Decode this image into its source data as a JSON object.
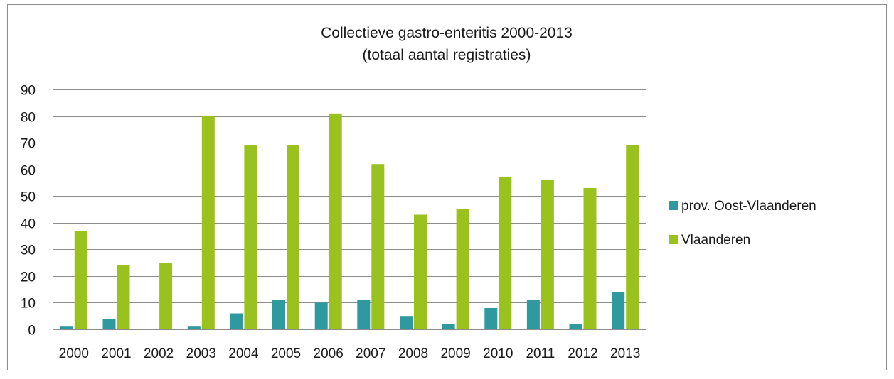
{
  "chart_data": {
    "type": "bar",
    "title": "Collectieve gastro-enteritis 2000-2013",
    "subtitle": "(totaal aantal registraties)",
    "xlabel": "",
    "ylabel": "",
    "ylim": [
      0,
      90
    ],
    "yticks": [
      0,
      10,
      20,
      30,
      40,
      50,
      60,
      70,
      80,
      90
    ],
    "grid": true,
    "legend_position": "right",
    "categories": [
      "2000",
      "2001",
      "2002",
      "2003",
      "2004",
      "2005",
      "2006",
      "2007",
      "2008",
      "2009",
      "2010",
      "2011",
      "2012",
      "2013"
    ],
    "series": [
      {
        "name": "prov. Oost-Vlaanderen",
        "color": "#2e9aa0",
        "values": [
          1,
          4,
          0,
          1,
          6,
          11,
          10,
          11,
          5,
          2,
          8,
          11,
          2,
          14
        ]
      },
      {
        "name": "Vlaanderen",
        "color": "#99c21f",
        "values": [
          37,
          24,
          25,
          80,
          69,
          69,
          81,
          62,
          43,
          45,
          57,
          56,
          53,
          69
        ]
      }
    ]
  }
}
